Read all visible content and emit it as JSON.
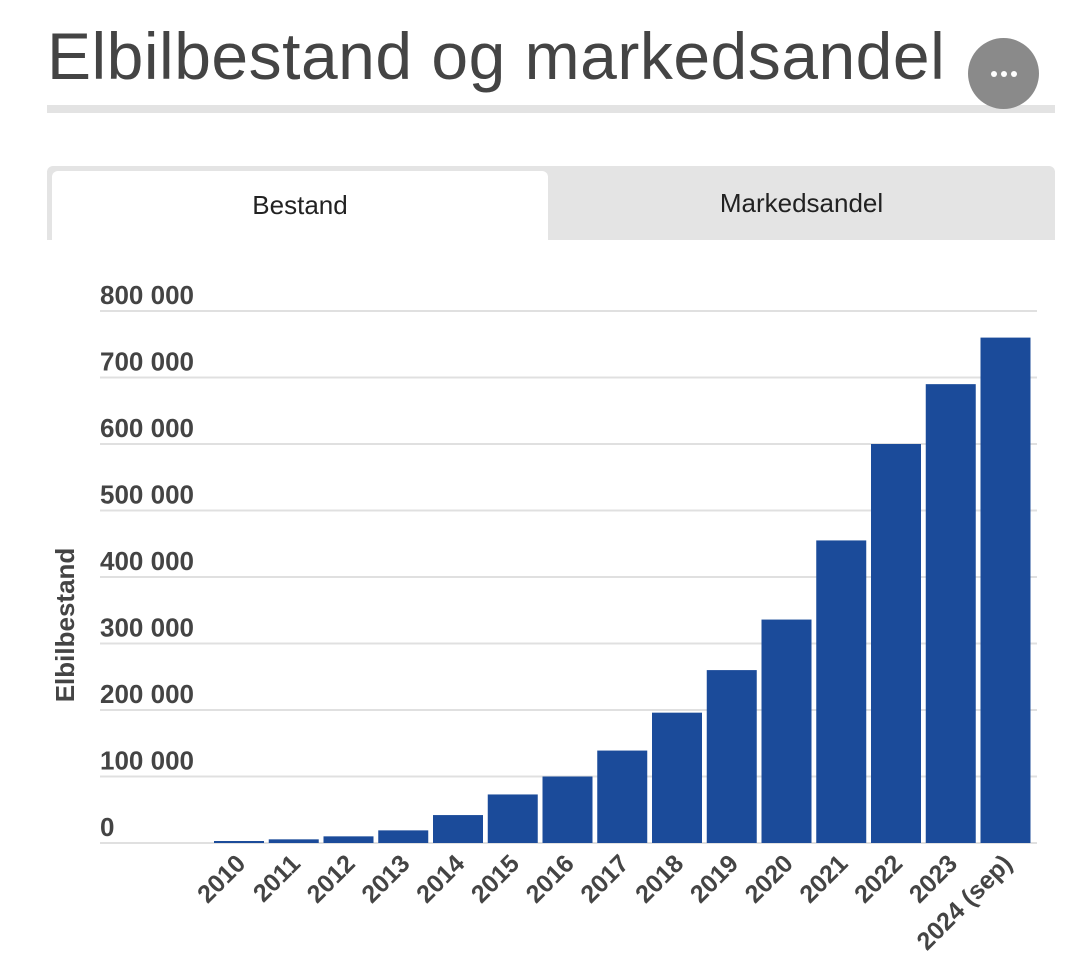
{
  "header": {
    "title": "Elbilbestand og markedsandel",
    "more_icon": "more-horizontal-icon"
  },
  "tabs": [
    {
      "label": "Bestand",
      "active": true
    },
    {
      "label": "Markedsandel",
      "active": false
    }
  ],
  "colors": {
    "bar": "#1b4b9a",
    "grid": "#e0e0e0",
    "text": "#444444",
    "tab_bg": "#e4e4e4"
  },
  "chart_data": {
    "type": "bar",
    "title": "",
    "xlabel": "",
    "ylabel": "Elbilbestand",
    "ylim": [
      0,
      800000
    ],
    "yticks": [
      0,
      100000,
      200000,
      300000,
      400000,
      500000,
      600000,
      700000,
      800000
    ],
    "ytick_labels": [
      "0",
      "100 000",
      "200 000",
      "300 000",
      "400 000",
      "500 000",
      "600 000",
      "700 000",
      "800 000"
    ],
    "grid": true,
    "legend": "none",
    "categories": [
      "2010",
      "2011",
      "2012",
      "2013",
      "2014",
      "2015",
      "2016",
      "2017",
      "2018",
      "2019",
      "2020",
      "2021",
      "2022",
      "2023",
      "2024 (sep)"
    ],
    "values": [
      3000,
      5500,
      10000,
      19000,
      42000,
      73000,
      100000,
      139000,
      196000,
      260000,
      336000,
      455000,
      600000,
      690000,
      760000
    ]
  }
}
